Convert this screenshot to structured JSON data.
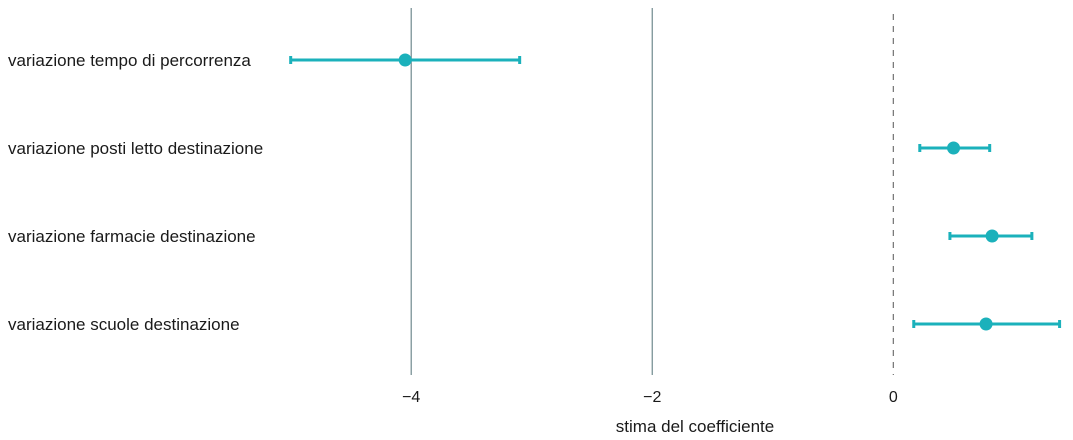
{
  "chart_data": {
    "type": "errorbar",
    "xlabel": "stima del coefficiente",
    "ylabel": "",
    "xlim": [
      -4.4,
      1.4
    ],
    "xticks": [
      {
        "value": -4,
        "label": "−4"
      },
      {
        "value": -2,
        "label": "−2"
      },
      {
        "value": 0,
        "label": "0"
      }
    ],
    "grid": "vertical lines at -4 and -2, dashed reference line at 0",
    "categories": [
      "variazione tempo di percorrenza",
      "variazione posti letto destinazione",
      "variazione farmacie destinazione",
      "variazione scuole destinazione"
    ],
    "estimates": [
      -4.05,
      0.5,
      0.82,
      0.77
    ],
    "ci_low": [
      -5.0,
      0.22,
      0.47,
      0.17
    ],
    "ci_high": [
      -3.1,
      0.8,
      1.15,
      1.38
    ],
    "colors": {
      "point": "#1bb1bb",
      "grid": "#6f8a8e",
      "zero_line": "#555555",
      "text": "#1a1a1a"
    }
  }
}
